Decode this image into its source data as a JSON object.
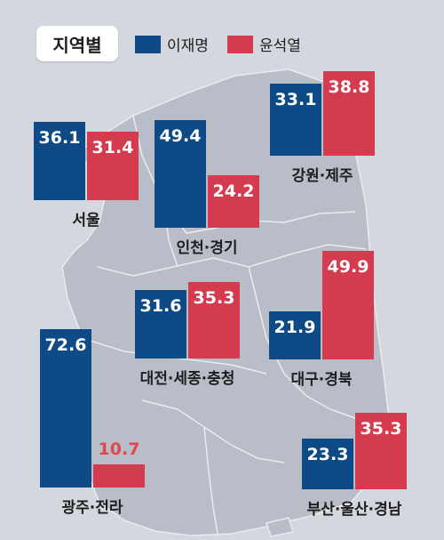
{
  "header": {
    "title": "지역별",
    "legend": [
      {
        "name": "이재명",
        "color": "#0d4a86"
      },
      {
        "name": "윤석열",
        "color": "#d43b4e"
      }
    ]
  },
  "chart_data": {
    "type": "bar",
    "title": "지역별",
    "categories": [
      "서울",
      "인천·경기",
      "강원·제주",
      "대전·세종·충청",
      "대구·경북",
      "광주·전라",
      "부산·울산·경남"
    ],
    "series": [
      {
        "name": "이재명",
        "color": "#0d4a86",
        "values": [
          36.1,
          49.4,
          33.1,
          31.6,
          21.9,
          72.6,
          23.3
        ]
      },
      {
        "name": "윤석열",
        "color": "#d43b4e",
        "values": [
          31.4,
          24.2,
          38.8,
          35.3,
          49.9,
          10.7,
          35.3
        ]
      }
    ],
    "background": "map of South Korea"
  }
}
